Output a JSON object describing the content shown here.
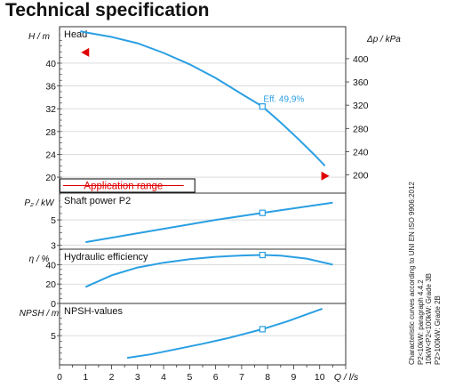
{
  "page": {
    "title": "Technical specification"
  },
  "chart_data": {
    "type": "line",
    "x_axis": {
      "label": "Q",
      "unit": "l/s",
      "range": [
        0,
        11
      ],
      "ticks": [
        0,
        1,
        2,
        3,
        4,
        5,
        6,
        7,
        8,
        9,
        10
      ]
    },
    "panels": [
      {
        "id": "head",
        "title": "Head",
        "left_axis": {
          "label": "H",
          "unit": "m",
          "range": [
            17.2,
            46.4
          ],
          "ticks": [
            20,
            24,
            28,
            32,
            36,
            40
          ]
        },
        "right_axis": {
          "label": "Δp",
          "unit": "kPa",
          "range": [
            168.7,
            455
          ],
          "ticks": [
            200,
            240,
            280,
            320,
            360,
            400
          ]
        },
        "series": [
          {
            "points": [
              [
                0.8,
                45.6
              ],
              [
                1,
                45.4
              ],
              [
                2,
                44.6
              ],
              [
                3,
                43.5
              ],
              [
                4,
                41.8
              ],
              [
                5,
                39.8
              ],
              [
                6,
                37.4
              ],
              [
                7,
                34.6
              ],
              [
                7.8,
                32.4
              ],
              [
                8.5,
                29.6
              ],
              [
                9.2,
                26.6
              ],
              [
                9.8,
                23.9
              ],
              [
                10.2,
                22.0
              ]
            ]
          }
        ],
        "operating_point": {
          "q": 7.8,
          "value": 32.4,
          "label": "Eff.  49,9%"
        },
        "application_range": {
          "label": "Application range",
          "from": 0,
          "to": 4.5
        },
        "range_markers": [
          [
            1.0,
            41.9
          ],
          [
            10.2,
            20.2
          ]
        ]
      },
      {
        "id": "power",
        "title": "Shaft power P2",
        "left_axis": {
          "label": "P₂",
          "unit": "kW",
          "range": [
            2.7,
            7.1
          ],
          "ticks": [
            3,
            5
          ]
        },
        "series": [
          {
            "points": [
              [
                1.0,
                3.25
              ],
              [
                2,
                3.6
              ],
              [
                3,
                3.95
              ],
              [
                4,
                4.3
              ],
              [
                5,
                4.65
              ],
              [
                6,
                5.0
              ],
              [
                7,
                5.3
              ],
              [
                7.8,
                5.55
              ],
              [
                8.5,
                5.75
              ],
              [
                9.5,
                6.05
              ],
              [
                10.5,
                6.35
              ]
            ]
          }
        ],
        "operating_point": {
          "q": 7.8,
          "value": 5.55
        }
      },
      {
        "id": "efficiency",
        "title": "Hydraulic efficiency",
        "left_axis": {
          "label": "η",
          "unit": "%",
          "range": [
            0,
            55.9
          ],
          "ticks": [
            0,
            20,
            40
          ]
        },
        "series": [
          {
            "points": [
              [
                1.0,
                17
              ],
              [
                2,
                29
              ],
              [
                3,
                37
              ],
              [
                4,
                42
              ],
              [
                5,
                45.6
              ],
              [
                6,
                48
              ],
              [
                7,
                49.4
              ],
              [
                7.8,
                49.9
              ],
              [
                8.5,
                49.3
              ],
              [
                9.5,
                46.2
              ],
              [
                10.5,
                40
              ]
            ]
          }
        ],
        "operating_point": {
          "q": 7.8,
          "value": 49.9
        }
      },
      {
        "id": "npsh",
        "title": "NPSH-values",
        "left_axis": {
          "label": "NPSH",
          "unit": "m",
          "range": [
            0,
            10.5
          ],
          "ticks": [
            5
          ]
        },
        "series": [
          {
            "points": [
              [
                2.6,
                1.2
              ],
              [
                3.5,
                1.8
              ],
              [
                4.5,
                2.7
              ],
              [
                5.5,
                3.6
              ],
              [
                6.5,
                4.6
              ],
              [
                7.8,
                6.1
              ],
              [
                8.8,
                7.5
              ],
              [
                9.6,
                8.8
              ],
              [
                10.1,
                9.6
              ]
            ]
          }
        ],
        "operating_point": {
          "q": 7.8,
          "value": 6.1
        }
      }
    ],
    "colors": {
      "curve": "#2a9fe3",
      "marker": "#e00000",
      "axis": "#333333"
    }
  },
  "side_note": [
    "Characteristic curves according to UNI EN ISO 9906:2012",
    "P2<10kW: paragraph 4.4.2",
    "10kW<P2<100kW: Grade 3B",
    "P2>100kW: Grade 2B"
  ]
}
